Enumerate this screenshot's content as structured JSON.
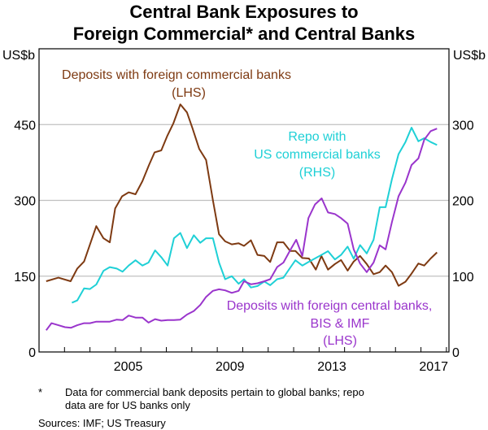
{
  "chart_data": {
    "type": "line",
    "title": [
      "Central Bank Exposures to",
      "Foreign Commercial* and Central Banks"
    ],
    "y_left_unit": "US$b",
    "y_right_unit": "US$b",
    "ylim_left": [
      0,
      600
    ],
    "ylim_right": [
      0,
      400
    ],
    "yticks_left": [
      "0",
      "150",
      "300",
      "450"
    ],
    "yticks_right": [
      "0",
      "100",
      "200",
      "300"
    ],
    "xlim": [
      2002,
      2018.1
    ],
    "xtick_labels": [
      "2005",
      "2009",
      "2013",
      "2017"
    ],
    "grid": true,
    "colors": {
      "commercial": "#7e3a12",
      "repo": "#1fd0d6",
      "central": "#9a35cc"
    },
    "series": [
      {
        "label_lines": [
          "Deposits with foreign commercial banks",
          "(LHS)"
        ],
        "axis": "left",
        "color_key": "commercial",
        "x": [
          2002.28,
          2002.76,
          2003.24,
          2003.5,
          2003.77,
          2004.25,
          2004.53,
          2004.78,
          2004.99,
          2005.26,
          2005.52,
          2005.79,
          2006.06,
          2006.32,
          2006.54,
          2006.8,
          2007.04,
          2007.28,
          2007.55,
          2007.81,
          2008.03,
          2008.29,
          2008.56,
          2008.83,
          2009.07,
          2009.31,
          2009.57,
          2009.84,
          2010.05,
          2010.32,
          2010.58,
          2010.85,
          2011.08,
          2011.35,
          2011.6,
          2011.86,
          2012.07,
          2012.34,
          2012.6,
          2012.87,
          2013.09,
          2013.35,
          2013.62,
          2013.86,
          2014.12,
          2014.36,
          2014.61,
          2014.87,
          2015.14,
          2015.38,
          2015.61,
          2015.86,
          2016.12,
          2016.39,
          2016.63,
          2016.9,
          2017.13,
          2017.38,
          2017.63
        ],
        "y": [
          140,
          147,
          140,
          165,
          179,
          249,
          225,
          217,
          284,
          308,
          316,
          312,
          338,
          370,
          395,
          399,
          428,
          453,
          490,
          474,
          442,
          402,
          380,
          300,
          233,
          219,
          213,
          215,
          210,
          221,
          192,
          190,
          178,
          217,
          217,
          200,
          200,
          186,
          185,
          163,
          190,
          163,
          174,
          182,
          161,
          179,
          190,
          174,
          154,
          158,
          171,
          158,
          131,
          139,
          155,
          175,
          171,
          185,
          197
        ]
      },
      {
        "label_lines": [
          "Repo with",
          "US commercial banks",
          "(RHS)"
        ],
        "axis": "right",
        "color_key": "repo",
        "x": [
          2003.29,
          2003.5,
          2003.77,
          2004.0,
          2004.25,
          2004.53,
          2004.78,
          2005.05,
          2005.28,
          2005.52,
          2005.79,
          2006.06,
          2006.3,
          2006.56,
          2006.8,
          2007.05,
          2007.3,
          2007.55,
          2007.81,
          2008.08,
          2008.33,
          2008.56,
          2008.83,
          2009.07,
          2009.31,
          2009.57,
          2009.84,
          2010.05,
          2010.32,
          2010.58,
          2010.85,
          2011.08,
          2011.35,
          2011.6,
          2011.86,
          2012.07,
          2012.34,
          2012.6,
          2012.87,
          2013.09,
          2013.35,
          2013.62,
          2013.86,
          2014.12,
          2014.36,
          2014.61,
          2014.87,
          2015.14,
          2015.38,
          2015.61,
          2015.86,
          2016.12,
          2016.39,
          2016.63,
          2016.9,
          2017.13,
          2017.38,
          2017.63
        ],
        "y": [
          65,
          68,
          84,
          83,
          89,
          107,
          112,
          110,
          106,
          114,
          121,
          114,
          118,
          134,
          125,
          114,
          150,
          157,
          137,
          154,
          144,
          150,
          150,
          118,
          96,
          100,
          90,
          96,
          85,
          87,
          93,
          88,
          96,
          98,
          111,
          121,
          114,
          119,
          124,
          128,
          133,
          122,
          128,
          139,
          123,
          141,
          130,
          148,
          191,
          191,
          228,
          261,
          277,
          296,
          278,
          282,
          277,
          273
        ]
      },
      {
        "label_lines": [
          "Deposits with foreign central banks,",
          "BIS & IMF",
          "(LHS)"
        ],
        "axis": "left",
        "color_key": "central",
        "x": [
          2002.28,
          2002.49,
          2002.76,
          2003.02,
          2003.26,
          2003.5,
          2003.77,
          2004.0,
          2004.25,
          2004.53,
          2004.78,
          2005.05,
          2005.28,
          2005.52,
          2005.79,
          2006.06,
          2006.3,
          2006.56,
          2006.8,
          2007.05,
          2007.3,
          2007.55,
          2007.81,
          2008.08,
          2008.33,
          2008.56,
          2008.83,
          2009.07,
          2009.31,
          2009.57,
          2009.84,
          2010.05,
          2010.32,
          2010.58,
          2010.85,
          2011.08,
          2011.35,
          2011.6,
          2011.86,
          2012.1,
          2012.34,
          2012.58,
          2012.84,
          2013.1,
          2013.35,
          2013.62,
          2013.86,
          2014.12,
          2014.36,
          2014.61,
          2014.87,
          2015.14,
          2015.38,
          2015.61,
          2015.86,
          2016.12,
          2016.39,
          2016.63,
          2016.9,
          2017.13,
          2017.38,
          2017.63
        ],
        "y": [
          43,
          57,
          53,
          49,
          48,
          53,
          57,
          57,
          60,
          60,
          60,
          64,
          63,
          72,
          68,
          68,
          58,
          65,
          62,
          63,
          63,
          64,
          74,
          81,
          93,
          109,
          121,
          124,
          122,
          117,
          121,
          140,
          134,
          136,
          140,
          144,
          168,
          177,
          201,
          222,
          190,
          265,
          292,
          304,
          276,
          273,
          265,
          254,
          203,
          175,
          158,
          177,
          211,
          203,
          257,
          308,
          335,
          370,
          383,
          420,
          437,
          442
        ]
      }
    ],
    "footnote": {
      "marker": "*",
      "lines": [
        "Data for commercial bank deposits pertain to global banks; repo",
        "data are for US banks only"
      ]
    },
    "sources": "Sources: IMF; US Treasury"
  }
}
